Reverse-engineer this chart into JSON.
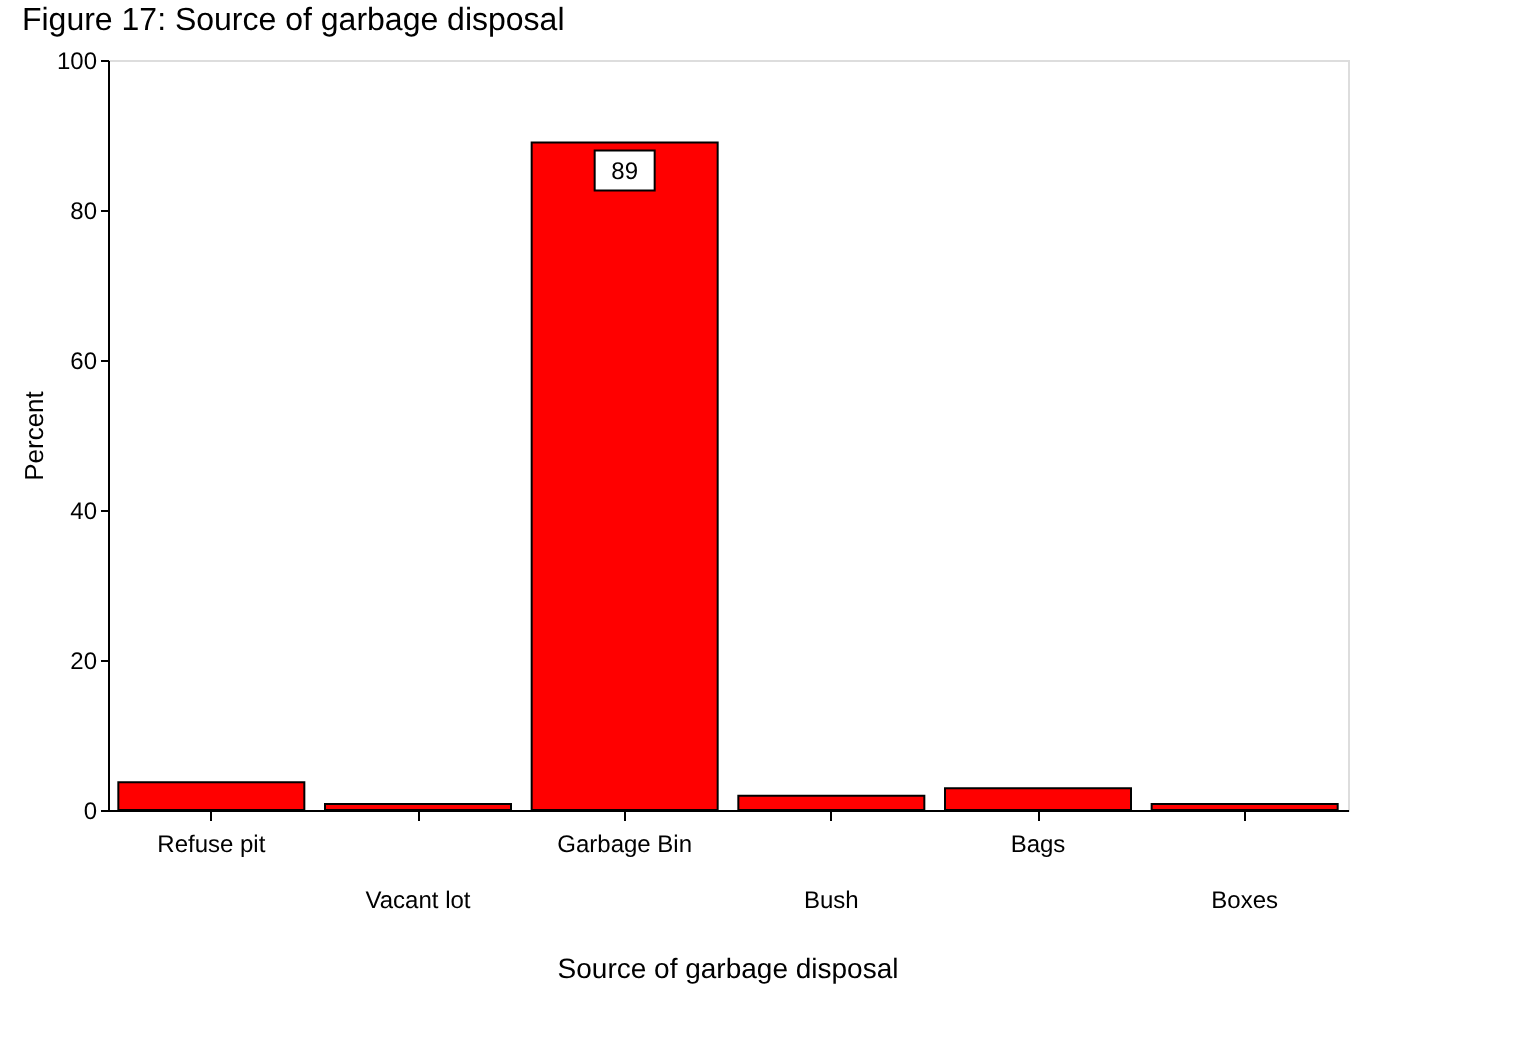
{
  "chart_data": {
    "type": "bar",
    "title": "Figure 17: Source of garbage disposal",
    "xlabel": "Source of garbage disposal",
    "ylabel": "Percent",
    "categories": [
      "Refuse pit",
      "Vacant lot",
      "Garbage Bin",
      "Bush",
      "Bags",
      "Boxes"
    ],
    "values": [
      3.7,
      0.8,
      89,
      1.9,
      2.9,
      0.8
    ],
    "value_labels": [
      null,
      null,
      "89",
      null,
      null,
      null
    ],
    "color": "#ff0000",
    "ylim": [
      0,
      100
    ],
    "yticks": [
      0,
      20,
      40,
      60,
      80,
      100
    ],
    "grid": false
  }
}
